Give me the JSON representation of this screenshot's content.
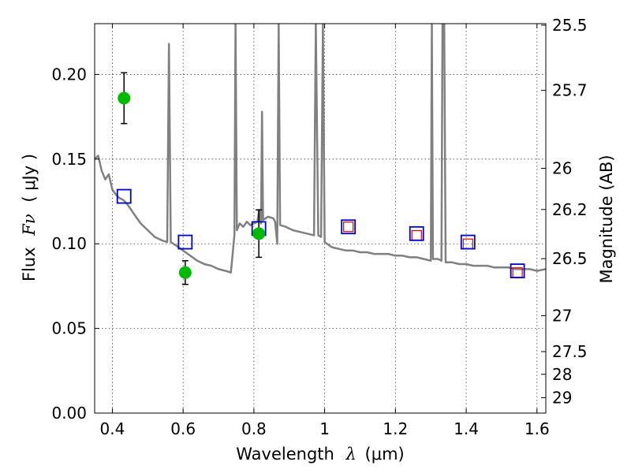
{
  "chart_data": {
    "type": "scatter",
    "xlabel_prefix": "Wavelength",
    "xlabel_symbol": "λ",
    "xlabel_unit": "(μm)",
    "ylabel_prefix": "Flux",
    "ylabel_symbol": "Fν",
    "ylabel_unit": "( μJy )",
    "y2label": "Magnitude (AB)",
    "xlim": [
      0.35,
      1.625
    ],
    "ylim": [
      0.0,
      0.23
    ],
    "grid": true,
    "x_ticks": [
      {
        "value": 0.4,
        "label": "0.4"
      },
      {
        "value": 0.6,
        "label": "0.6"
      },
      {
        "value": 0.8,
        "label": "0.8"
      },
      {
        "value": 1.0,
        "label": "1"
      },
      {
        "value": 1.2,
        "label": "1.2"
      },
      {
        "value": 1.4,
        "label": "1.4"
      },
      {
        "value": 1.6,
        "label": "1.6"
      }
    ],
    "y_ticks": [
      {
        "value": 0.0,
        "label": "0.00"
      },
      {
        "value": 0.05,
        "label": "0.05"
      },
      {
        "value": 0.1,
        "label": "0.10"
      },
      {
        "value": 0.15,
        "label": "0.15"
      },
      {
        "value": 0.2,
        "label": "0.20"
      }
    ],
    "mag_ticks": [
      {
        "mag": 25.5,
        "label": "25.5"
      },
      {
        "mag": 25.7,
        "label": "25.7"
      },
      {
        "mag": 26.0,
        "label": "26"
      },
      {
        "mag": 26.2,
        "label": "26.2"
      },
      {
        "mag": 26.5,
        "label": "26.5"
      },
      {
        "mag": 27.0,
        "label": "27"
      },
      {
        "mag": 27.5,
        "label": "27.5"
      },
      {
        "mag": 28.0,
        "label": "28"
      },
      {
        "mag": 29.0,
        "label": "29"
      }
    ],
    "colors": {
      "model": "#808080",
      "observed": "#00bb00",
      "model_box": "#0000cc",
      "predicted": "#dd0000",
      "errorbar": "#000000"
    },
    "model_spectrum": [
      [
        0.35,
        0.15
      ],
      [
        0.36,
        0.152
      ],
      [
        0.37,
        0.143
      ],
      [
        0.38,
        0.138
      ],
      [
        0.39,
        0.141
      ],
      [
        0.4,
        0.132
      ],
      [
        0.41,
        0.129
      ],
      [
        0.42,
        0.127
      ],
      [
        0.43,
        0.126
      ],
      [
        0.44,
        0.124
      ],
      [
        0.45,
        0.121
      ],
      [
        0.46,
        0.118
      ],
      [
        0.47,
        0.115
      ],
      [
        0.48,
        0.112
      ],
      [
        0.5,
        0.108
      ],
      [
        0.52,
        0.104
      ],
      [
        0.54,
        0.102
      ],
      [
        0.555,
        0.101
      ],
      [
        0.56,
        0.218
      ],
      [
        0.565,
        0.101
      ],
      [
        0.58,
        0.099
      ],
      [
        0.6,
        0.096
      ],
      [
        0.62,
        0.093
      ],
      [
        0.64,
        0.09
      ],
      [
        0.66,
        0.088
      ],
      [
        0.68,
        0.087
      ],
      [
        0.7,
        0.085
      ],
      [
        0.72,
        0.084
      ],
      [
        0.735,
        0.083
      ],
      [
        0.745,
        0.105
      ],
      [
        0.748,
        0.23
      ],
      [
        0.752,
        0.108
      ],
      [
        0.76,
        0.112
      ],
      [
        0.77,
        0.11
      ],
      [
        0.78,
        0.113
      ],
      [
        0.79,
        0.111
      ],
      [
        0.8,
        0.112
      ],
      [
        0.81,
        0.113
      ],
      [
        0.815,
        0.12
      ],
      [
        0.82,
        0.112
      ],
      [
        0.823,
        0.178
      ],
      [
        0.826,
        0.114
      ],
      [
        0.84,
        0.116
      ],
      [
        0.855,
        0.115
      ],
      [
        0.86,
        0.113
      ],
      [
        0.866,
        0.1
      ],
      [
        0.87,
        0.23
      ],
      [
        0.874,
        0.111
      ],
      [
        0.89,
        0.11
      ],
      [
        0.91,
        0.108
      ],
      [
        0.93,
        0.107
      ],
      [
        0.95,
        0.106
      ],
      [
        0.97,
        0.105
      ],
      [
        0.975,
        0.23
      ],
      [
        0.982,
        0.105
      ],
      [
        0.99,
        0.104
      ],
      [
        0.995,
        0.23
      ],
      [
        1.0,
        0.101
      ],
      [
        1.02,
        0.098
      ],
      [
        1.04,
        0.097
      ],
      [
        1.06,
        0.096
      ],
      [
        1.08,
        0.096
      ],
      [
        1.1,
        0.095
      ],
      [
        1.12,
        0.095
      ],
      [
        1.14,
        0.094
      ],
      [
        1.16,
        0.094
      ],
      [
        1.18,
        0.094
      ],
      [
        1.2,
        0.093
      ],
      [
        1.22,
        0.093
      ],
      [
        1.24,
        0.092
      ],
      [
        1.26,
        0.092
      ],
      [
        1.28,
        0.091
      ],
      [
        1.3,
        0.09
      ],
      [
        1.303,
        0.23
      ],
      [
        1.306,
        0.091
      ],
      [
        1.32,
        0.091
      ],
      [
        1.33,
        0.09
      ],
      [
        1.333,
        0.23
      ],
      [
        1.338,
        0.23
      ],
      [
        1.342,
        0.089
      ],
      [
        1.36,
        0.089
      ],
      [
        1.38,
        0.088
      ],
      [
        1.4,
        0.088
      ],
      [
        1.42,
        0.087
      ],
      [
        1.44,
        0.087
      ],
      [
        1.46,
        0.087
      ],
      [
        1.48,
        0.086
      ],
      [
        1.5,
        0.086
      ],
      [
        1.52,
        0.086
      ],
      [
        1.54,
        0.085
      ],
      [
        1.56,
        0.085
      ],
      [
        1.58,
        0.085
      ],
      [
        1.6,
        0.084
      ],
      [
        1.625,
        0.085
      ]
    ],
    "observed_points": [
      {
        "x": 0.433,
        "y": 0.186,
        "err": 0.015
      },
      {
        "x": 0.606,
        "y": 0.083,
        "err": 0.007
      },
      {
        "x": 0.814,
        "y": 0.106,
        "err": 0.014
      }
    ],
    "model_boxes": [
      {
        "x": 0.433,
        "y": 0.128
      },
      {
        "x": 0.606,
        "y": 0.101
      },
      {
        "x": 0.814,
        "y": 0.109
      },
      {
        "x": 1.067,
        "y": 0.11
      },
      {
        "x": 1.26,
        "y": 0.106
      },
      {
        "x": 1.405,
        "y": 0.101
      },
      {
        "x": 1.545,
        "y": 0.084
      }
    ],
    "predicted_boxes": [
      {
        "x": 1.067,
        "y": 0.11
      },
      {
        "x": 1.26,
        "y": 0.105
      },
      {
        "x": 1.405,
        "y": 0.1
      },
      {
        "x": 1.545,
        "y": 0.083
      }
    ]
  }
}
